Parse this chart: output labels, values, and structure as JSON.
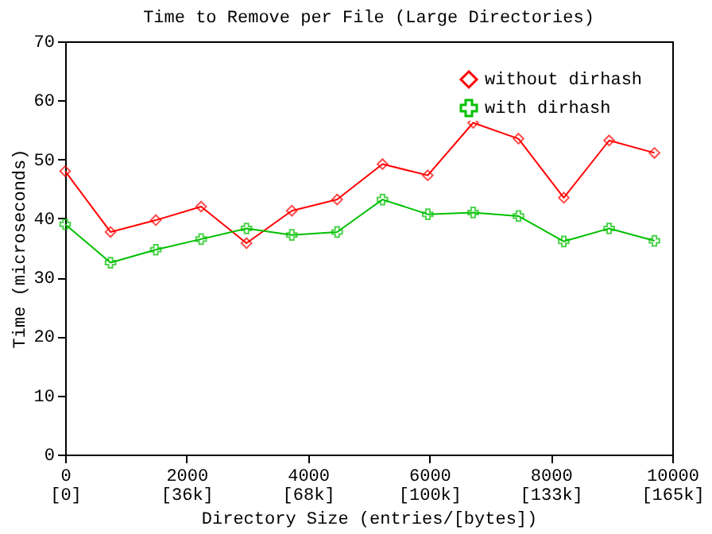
{
  "chart_data": {
    "type": "line",
    "title": "Time to Remove per File (Large Directories)",
    "xlabel": "Directory Size (entries/[bytes])",
    "ylabel": "Time (microseconds)",
    "x": [
      0,
      747,
      1493,
      2240,
      2987,
      3733,
      4480,
      5227,
      5973,
      6720,
      7467,
      8213,
      8960,
      9707
    ],
    "series": [
      {
        "name": "without dirhash",
        "color": "#ff0000",
        "marker": "diamond",
        "values": [
          48,
          37.7,
          39.7,
          42,
          35.8,
          41.3,
          43.2,
          49.2,
          47.3,
          56.2,
          53.5,
          43.5,
          53.2,
          51.1
        ]
      },
      {
        "name": "with dirhash",
        "color": "#00c000",
        "marker": "cross",
        "values": [
          39,
          32.5,
          34.7,
          36.5,
          38.3,
          37.2,
          37.7,
          43.2,
          40.7,
          41,
          40.4,
          36.1,
          38.3,
          36.2
        ]
      }
    ],
    "xlim": [
      0,
      10000
    ],
    "xticks": [
      0,
      2000,
      4000,
      6000,
      8000,
      10000
    ],
    "annotations": [
      "[0]",
      "[36k]",
      "[68k]",
      "[100k]",
      "[133k]",
      "[165k]"
    ],
    "ylim": [
      0,
      70
    ],
    "yticks": [
      0,
      10,
      20,
      30,
      40,
      50,
      60,
      70
    ],
    "legend": "top right",
    "grid": false,
    "line_style": "solid"
  }
}
